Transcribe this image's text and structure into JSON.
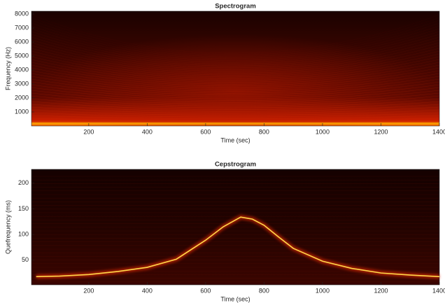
{
  "chart_data": [
    {
      "type": "heatmap",
      "title": "Spectrogram",
      "x_label": "Time (sec)",
      "y_label": "Frequency (Hz)",
      "xlim": [
        4,
        1400
      ],
      "xticks": [
        200,
        400,
        600,
        800,
        1000,
        1200,
        1400
      ],
      "ylim": [
        0,
        8200
      ],
      "yticks": [
        1000,
        2000,
        3000,
        4000,
        5000,
        6000,
        7000,
        8000
      ]
    },
    {
      "type": "heatmap",
      "title": "Cepstrogram",
      "x_label": "Time (sec)",
      "y_label": "Quefrequency (ms)",
      "xlim": [
        4,
        1400
      ],
      "xticks": [
        200,
        400,
        600,
        800,
        1000,
        1200,
        1400
      ],
      "ylim": [
        2,
        227
      ],
      "yticks": [
        50,
        100,
        150,
        200
      ],
      "x": [
        20,
        100,
        200,
        300,
        400,
        500,
        600,
        660,
        720,
        760,
        800,
        850,
        900,
        1000,
        1100,
        1200,
        1300,
        1400
      ],
      "values": [
        18,
        19,
        22,
        28,
        36,
        52,
        89,
        115,
        134,
        130,
        118,
        95,
        73,
        48,
        34,
        25,
        21,
        18
      ],
      "color": "#ffd84a"
    }
  ]
}
